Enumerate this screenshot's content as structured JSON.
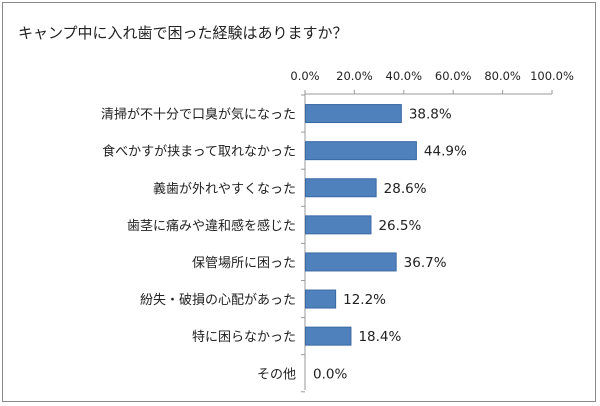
{
  "chart_data": {
    "type": "bar",
    "orientation": "horizontal",
    "title": "キャンプ中に入れ歯で困った経験はありますか？",
    "categories": [
      "清掃が不十分で口臭が気になった",
      "食べかすが挟まって取れなかった",
      "義歯が外れやすくなった",
      "歯茎に痛みや違和感を感じた",
      "保管場所に困った",
      "紛失・破損の心配があった",
      "特に困らなかった",
      "その他"
    ],
    "values": [
      38.8,
      44.9,
      28.6,
      26.5,
      36.7,
      12.2,
      18.4,
      0.0
    ],
    "data_labels": [
      "38.8%",
      "44.9%",
      "28.6%",
      "26.5%",
      "36.7%",
      "12.2%",
      "18.4%",
      "0.0%"
    ],
    "xlim": [
      0,
      100
    ],
    "xticks": [
      "0.0%",
      "20.0%",
      "40.0%",
      "60.0%",
      "80.0%",
      "100.0%"
    ],
    "xaxis_position": "top",
    "grid": false,
    "bar_color": "#4f81bd",
    "bar_edge_color": "#3a6aa3"
  }
}
